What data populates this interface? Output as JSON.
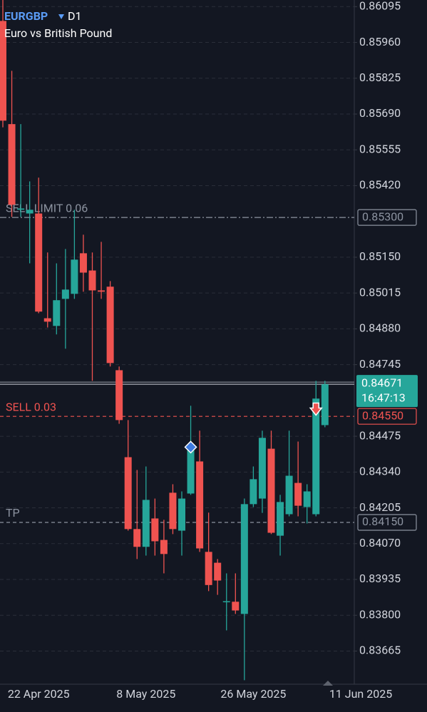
{
  "chart_data": {
    "type": "candlestick",
    "symbol": "EURGBP",
    "timeframe": "D1",
    "title": "Euro vs British Pound",
    "categories": [
      null,
      null,
      null,
      null,
      "22 Apr 2025",
      null,
      null,
      null,
      null,
      null,
      null,
      null,
      null,
      null,
      null,
      null,
      "8 May 2025",
      null,
      null,
      null,
      null,
      null,
      null,
      null,
      null,
      null,
      null,
      null,
      "26 May 2025",
      null,
      null,
      null,
      null,
      null,
      null,
      null,
      null,
      null,
      null,
      null,
      "11 Jun 2025"
    ],
    "open": [
      0.86041,
      0.85652,
      0.85329,
      0.85315,
      0.85315,
      0.8492,
      0.84891,
      0.84993,
      0.85012,
      0.85165,
      0.851,
      0.85025,
      0.85039,
      0.84724,
      0.84396,
      0.84125,
      0.84058,
      0.84165,
      0.84084,
      0.84262,
      0.84119,
      0.84259,
      0.8438,
      0.84039,
      0.83998,
      0.8385,
      0.83851,
      0.83805,
      0.84219,
      0.8424,
      0.84428,
      0.841,
      0.84181,
      0.84299,
      0.84208,
      0.84181,
      0.84517,
      null,
      null,
      null,
      null
    ],
    "high": [
      0.86122,
      0.85853,
      0.85652,
      0.85436,
      0.8545,
      0.85168,
      0.85127,
      0.85181,
      0.85329,
      0.85235,
      0.85168,
      0.85208,
      0.8506,
      0.84738,
      0.84536,
      0.84348,
      0.84361,
      0.8424,
      0.8416,
      0.84294,
      0.84267,
      0.8459,
      0.84496,
      0.84187,
      0.84012,
      0.83958,
      0.83958,
      0.8424,
      0.84361,
      0.84496,
      0.84496,
      0.84254,
      0.84496,
      0.84455,
      0.84294,
      0.84684,
      0.84684,
      null,
      null,
      null,
      null
    ],
    "low": [
      0.8564,
      0.85302,
      0.85302,
      0.85127,
      0.84939,
      0.84885,
      0.84859,
      0.84805,
      0.84993,
      0.8502,
      0.84684,
      0.84993,
      0.84738,
      0.84522,
      0.84119,
      0.84012,
      0.84025,
      0.84025,
      0.83958,
      0.84106,
      0.84025,
      0.84254,
      0.84039,
      0.83891,
      0.83877,
      0.83743,
      0.83805,
      0.83555,
      0.84208,
      0.84186,
      0.84106,
      0.84025,
      0.84173,
      0.84173,
      0.84146,
      0.84173,
      0.84509,
      null,
      null,
      null,
      null
    ],
    "close": [
      0.85665,
      0.85348,
      0.85334,
      0.85329,
      0.84945,
      0.84907,
      0.84988,
      0.85028,
      0.85141,
      0.85092,
      0.85025,
      0.8502,
      0.84751,
      0.84536,
      0.84125,
      0.84058,
      0.84235,
      0.84079,
      0.84031,
      0.84125,
      0.8424,
      0.84428,
      0.84052,
      0.83914,
      0.83931,
      0.83853,
      0.83818,
      0.84219,
      0.84313,
      0.84469,
      0.84111,
      0.84227,
      0.84326,
      0.84213,
      0.84267,
      0.84617,
      0.84671,
      null,
      null,
      null,
      null
    ],
    "up_color": "#26a69a",
    "down_color": "#ef5350",
    "ylim": [
      0.8354,
      0.8612
    ],
    "yticks": [
      {
        "value": 0.86095,
        "label": "0.86095"
      },
      {
        "value": 0.8596,
        "label": "0.85960"
      },
      {
        "value": 0.85825,
        "label": "0.85825"
      },
      {
        "value": 0.8569,
        "label": "0.85690"
      },
      {
        "value": 0.85555,
        "label": "0.85555"
      },
      {
        "value": 0.8542,
        "label": "0.85420"
      },
      {
        "value": 0.8515,
        "label": "0.85150"
      },
      {
        "value": 0.85015,
        "label": "0.85015"
      },
      {
        "value": 0.8488,
        "label": "0.84880"
      },
      {
        "value": 0.84745,
        "label": "0.84745"
      },
      {
        "value": 0.84475,
        "label": "0.84475"
      },
      {
        "value": 0.8434,
        "label": "0.84340"
      },
      {
        "value": 0.84205,
        "label": "0.84205"
      },
      {
        "value": 0.8407,
        "label": "0.84070"
      },
      {
        "value": 0.83935,
        "label": "0.83935"
      },
      {
        "value": 0.838,
        "label": "0.83800"
      },
      {
        "value": 0.83665,
        "label": "0.83665"
      }
    ],
    "grid": true,
    "order_lines": [
      {
        "name": "SELL LIMIT 0.06",
        "price": {
          "value": 0.853,
          "label": "0.85300"
        },
        "color": "#8c93a0",
        "dash": "dash-dot"
      },
      {
        "name": "SELL 0.03",
        "price": {
          "value": 0.8455,
          "label": "0.84550"
        },
        "color": "#f05350",
        "dash": "dashed"
      },
      {
        "name": "TP",
        "price": {
          "value": 0.8415,
          "label": "0.84150"
        },
        "color": "#8c93a0",
        "dash": "dashed"
      }
    ],
    "current_price": 0.84671,
    "countdown": "16:47:13",
    "current_price_color": "#26a69a",
    "trade_markers": [
      {
        "category_index": 21,
        "price": 0.84434,
        "shape": "diamond",
        "color": "#3d7be0"
      },
      {
        "category_index": 35,
        "price": 0.84576,
        "shape": "arrow-down",
        "color": "#ef5350"
      }
    ]
  }
}
